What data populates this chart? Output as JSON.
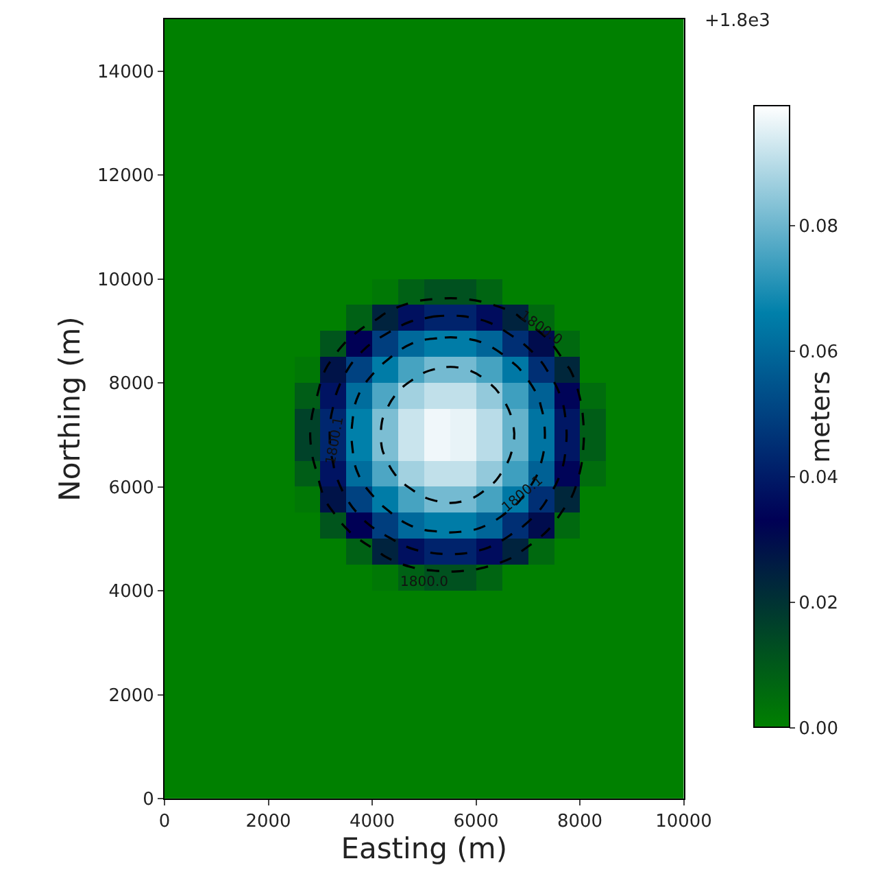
{
  "chart_data": {
    "type": "heatmap",
    "xlabel": "Easting (m)",
    "ylabel": "Northing (m)",
    "clabel": "meters",
    "xlim": [
      0,
      10000
    ],
    "ylim": [
      0,
      15000
    ],
    "xticks": [
      0,
      2000,
      4000,
      6000,
      8000,
      10000
    ],
    "yticks": [
      0,
      2000,
      4000,
      6000,
      8000,
      10000,
      12000,
      14000
    ],
    "clim": [
      0,
      0.099
    ],
    "cticks": [
      {
        "value": 0,
        "label": "0.00"
      },
      {
        "value": 0.02,
        "label": "0.02"
      },
      {
        "value": 0.04,
        "label": "0.04"
      },
      {
        "value": 0.06,
        "label": "0.06"
      },
      {
        "value": 0.08,
        "label": "0.08"
      }
    ],
    "colors": [
      "#008000",
      "#000055",
      "#0080aa",
      "#ffffff"
    ],
    "line_style": "dashed",
    "annotations": [
      "+1.8e3",
      "1800.0",
      "1800.1",
      "1800.1",
      "1800.0"
    ],
    "cells": [
      [
        0,
        0,
        0,
        0,
        0,
        0,
        0,
        0,
        0,
        0,
        0,
        0,
        0,
        0,
        0,
        0,
        0,
        0,
        0,
        0
      ],
      [
        0,
        0,
        0,
        0,
        0,
        0,
        0,
        0,
        0,
        0,
        0,
        0,
        0,
        0,
        0,
        0,
        0,
        0,
        0,
        0
      ],
      [
        0,
        0,
        0,
        0,
        0,
        0,
        0,
        0,
        0,
        0,
        0,
        0,
        0,
        0,
        0,
        0,
        0,
        0,
        0,
        0
      ],
      [
        0,
        0,
        0,
        0,
        0,
        0,
        0,
        0,
        0,
        0,
        0,
        0,
        0,
        0,
        0,
        0,
        0,
        0,
        0,
        0
      ],
      [
        0,
        0,
        0,
        0,
        0,
        0,
        0,
        0,
        0,
        0,
        0,
        0,
        0,
        0,
        0,
        0,
        0,
        0,
        0,
        0
      ],
      [
        0,
        0,
        0,
        0,
        0,
        0,
        0,
        0,
        0,
        0,
        0,
        0,
        0,
        0,
        0,
        0,
        0,
        0,
        0,
        0
      ],
      [
        0,
        0,
        0,
        0,
        0,
        0,
        0,
        0,
        0,
        0,
        0,
        0,
        0,
        0,
        0,
        0,
        0,
        0,
        0,
        0
      ],
      [
        0,
        0,
        0,
        0,
        0,
        0,
        0,
        0,
        0,
        0,
        0,
        0,
        0,
        0,
        0,
        0,
        0,
        0,
        0,
        0
      ],
      [
        0,
        0,
        0,
        0,
        0,
        0,
        0,
        0,
        0,
        0,
        0,
        0,
        0,
        0,
        0,
        0,
        0,
        0,
        0,
        0
      ],
      [
        0,
        0,
        0,
        0,
        0,
        0,
        0,
        0,
        0,
        0,
        0,
        0,
        0,
        0,
        0,
        0,
        0,
        0,
        0,
        0
      ],
      [
        0,
        0,
        0,
        0,
        0,
        0,
        0,
        0,
        0.002,
        0.008,
        0.012,
        0.012,
        0.007,
        0,
        0,
        0,
        0,
        0,
        0,
        0
      ],
      [
        0,
        0,
        0,
        0,
        0,
        0,
        0,
        0.008,
        0.024,
        0.037,
        0.042,
        0.042,
        0.036,
        0.024,
        0.006,
        0,
        0,
        0,
        0,
        0
      ],
      [
        0,
        0,
        0,
        0,
        0,
        0,
        0.011,
        0.033,
        0.049,
        0.06,
        0.065,
        0.065,
        0.059,
        0.045,
        0.03,
        0.006,
        0,
        0,
        0,
        0
      ],
      [
        0,
        0,
        0,
        0,
        0,
        0.002,
        0.028,
        0.05,
        0.065,
        0.075,
        0.081,
        0.081,
        0.075,
        0.064,
        0.045,
        0.023,
        0,
        0,
        0,
        0
      ],
      [
        0,
        0,
        0,
        0,
        0,
        0.009,
        0.038,
        0.061,
        0.076,
        0.087,
        0.091,
        0.091,
        0.085,
        0.074,
        0.058,
        0.034,
        0.005,
        0,
        0,
        0
      ],
      [
        0,
        0,
        0,
        0,
        0,
        0.016,
        0.043,
        0.066,
        0.082,
        0.092,
        0.097,
        0.096,
        0.09,
        0.079,
        0.063,
        0.039,
        0.009,
        0,
        0,
        0
      ],
      [
        0,
        0,
        0,
        0,
        0,
        0.016,
        0.043,
        0.066,
        0.082,
        0.092,
        0.097,
        0.096,
        0.09,
        0.079,
        0.063,
        0.039,
        0.009,
        0,
        0,
        0
      ],
      [
        0,
        0,
        0,
        0,
        0,
        0.009,
        0.038,
        0.061,
        0.076,
        0.087,
        0.091,
        0.091,
        0.085,
        0.074,
        0.058,
        0.034,
        0.005,
        0,
        0,
        0
      ],
      [
        0,
        0,
        0,
        0,
        0,
        0.002,
        0.028,
        0.05,
        0.065,
        0.075,
        0.081,
        0.081,
        0.075,
        0.064,
        0.045,
        0.023,
        0,
        0,
        0,
        0
      ],
      [
        0,
        0,
        0,
        0,
        0,
        0,
        0.011,
        0.033,
        0.049,
        0.06,
        0.065,
        0.065,
        0.059,
        0.045,
        0.03,
        0.006,
        0,
        0,
        0,
        0
      ],
      [
        0,
        0,
        0,
        0,
        0,
        0,
        0,
        0.008,
        0.024,
        0.037,
        0.042,
        0.042,
        0.036,
        0.024,
        0.006,
        0,
        0,
        0,
        0,
        0
      ],
      [
        0,
        0,
        0,
        0,
        0,
        0,
        0,
        0,
        0.002,
        0.008,
        0.012,
        0.012,
        0.007,
        0,
        0,
        0,
        0,
        0,
        0,
        0
      ],
      [
        0,
        0,
        0,
        0,
        0,
        0,
        0,
        0,
        0,
        0,
        0,
        0,
        0,
        0,
        0,
        0,
        0,
        0,
        0,
        0
      ],
      [
        0,
        0,
        0,
        0,
        0,
        0,
        0,
        0,
        0,
        0,
        0,
        0,
        0,
        0,
        0,
        0,
        0,
        0,
        0,
        0
      ],
      [
        0,
        0,
        0,
        0,
        0,
        0,
        0,
        0,
        0,
        0,
        0,
        0,
        0,
        0,
        0,
        0,
        0,
        0,
        0,
        0
      ],
      [
        0,
        0,
        0,
        0,
        0,
        0,
        0,
        0,
        0,
        0,
        0,
        0,
        0,
        0,
        0,
        0,
        0,
        0,
        0,
        0
      ],
      [
        0,
        0,
        0,
        0,
        0,
        0,
        0,
        0,
        0,
        0,
        0,
        0,
        0,
        0,
        0,
        0,
        0,
        0,
        0,
        0
      ],
      [
        0,
        0,
        0,
        0,
        0,
        0,
        0,
        0,
        0,
        0,
        0,
        0,
        0,
        0,
        0,
        0,
        0,
        0,
        0,
        0
      ],
      [
        0,
        0,
        0,
        0,
        0,
        0,
        0,
        0,
        0,
        0,
        0,
        0,
        0,
        0,
        0,
        0,
        0,
        0,
        0,
        0
      ],
      [
        0,
        0,
        0,
        0,
        0,
        0,
        0,
        0,
        0,
        0,
        0,
        0,
        0,
        0,
        0,
        0,
        0,
        0,
        0,
        0
      ]
    ]
  }
}
